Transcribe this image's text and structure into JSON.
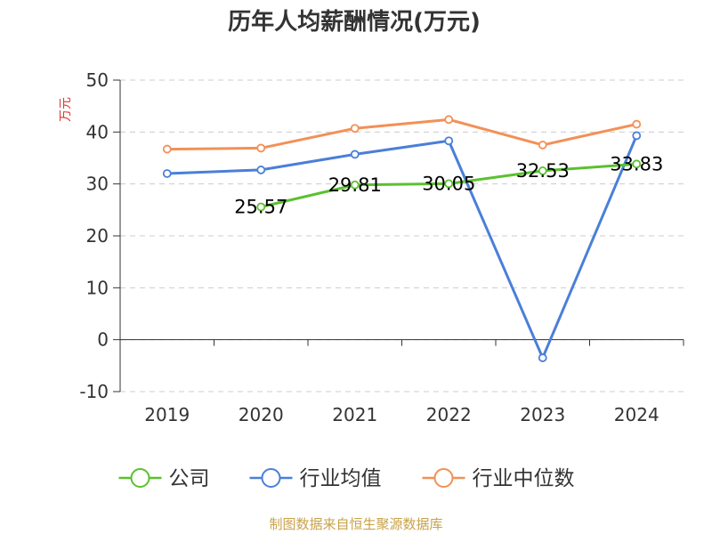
{
  "chart_data": {
    "type": "line",
    "title": "历年人均薪酬情况(万元)",
    "ylabel": "万元",
    "xlabel": "",
    "categories": [
      "2019",
      "2020",
      "2021",
      "2022",
      "2023",
      "2024"
    ],
    "ylim": [
      -10,
      50
    ],
    "yticks": [
      "-10",
      "0",
      "10",
      "20",
      "30",
      "40",
      "50"
    ],
    "grid": true,
    "legend_position": "bottom",
    "series": [
      {
        "name": "公司",
        "color": "#5ac12f",
        "values": [
          null,
          25.57,
          29.81,
          30.05,
          32.53,
          33.83
        ],
        "labels": [
          "",
          "25.57",
          "29.81",
          "30.05",
          "32.53",
          "33.83"
        ]
      },
      {
        "name": "行业均值",
        "color": "#4a7fd9",
        "values": [
          32.0,
          32.7,
          35.7,
          38.3,
          -3.5,
          39.3
        ],
        "labels": [
          "",
          "",
          "",
          "",
          "",
          ""
        ]
      },
      {
        "name": "行业中位数",
        "color": "#f39056",
        "values": [
          36.7,
          36.9,
          40.7,
          42.4,
          37.5,
          41.5
        ],
        "labels": [
          "",
          "",
          "",
          "",
          "",
          ""
        ]
      }
    ],
    "source": "制图数据来自恒生聚源数据库",
    "source_color": "#c8a24a",
    "ylabel_color": "#e0362e"
  }
}
